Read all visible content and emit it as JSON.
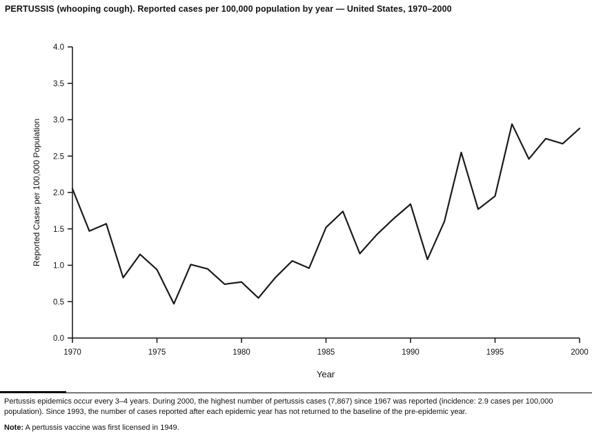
{
  "chart_data": {
    "type": "line",
    "title": "PERTUSSIS (whooping cough). Reported cases per 100,000 population by year — United States, 1970–2000",
    "x": [
      1970,
      1971,
      1972,
      1973,
      1974,
      1975,
      1976,
      1977,
      1978,
      1979,
      1980,
      1981,
      1982,
      1983,
      1984,
      1985,
      1986,
      1987,
      1988,
      1989,
      1990,
      1991,
      1992,
      1993,
      1994,
      1995,
      1996,
      1997,
      1998,
      1999,
      2000
    ],
    "values": [
      2.05,
      1.47,
      1.57,
      0.83,
      1.15,
      0.94,
      0.47,
      1.01,
      0.95,
      0.74,
      0.77,
      0.55,
      0.83,
      1.06,
      0.96,
      1.52,
      1.74,
      1.16,
      1.42,
      1.64,
      1.84,
      1.08,
      1.6,
      2.55,
      1.77,
      1.95,
      2.94,
      2.46,
      2.74,
      2.67,
      2.88
    ],
    "xlabel": "Year",
    "ylabel": "Reported Cases per 100,000 Population",
    "xlim": [
      1970,
      2000
    ],
    "ylim": [
      0.0,
      4.0
    ],
    "xticks": [
      1970,
      1975,
      1980,
      1985,
      1990,
      1995,
      2000
    ],
    "ytick_step": 0.5,
    "grid": false,
    "legend": "none",
    "line_color": "#1a1a1a",
    "axis_color": "#111111"
  },
  "footer": {
    "paragraph": "Pertussis epidemics occur every 3–4 years. During 2000, the highest number of pertussis cases (7,867) since 1967 was reported (incidence: 2.9 cases per 100,000 population). Since 1993, the number of cases reported after each epidemic year has not returned to the baseline of the pre-epidemic year.",
    "note_label": "Note:",
    "note_text": " A pertussis vaccine was first licensed in 1949."
  }
}
